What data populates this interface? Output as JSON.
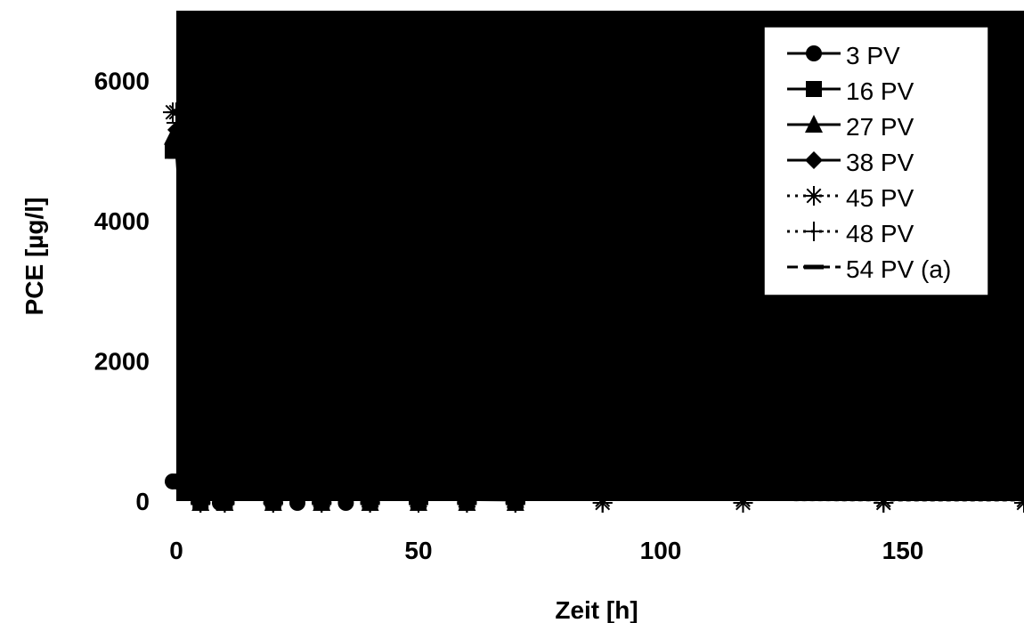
{
  "chart_data": {
    "type": "line",
    "xlabel": "Zeit [h]",
    "ylabel": "PCE [µg/l]",
    "xlim": [
      0,
      175
    ],
    "ylim": [
      0,
      7000
    ],
    "xticks": [
      0,
      50,
      100,
      150
    ],
    "yticks": [
      0,
      2000,
      4000,
      6000
    ],
    "xtick_labels": [
      "0",
      "50",
      "100",
      "150"
    ],
    "ytick_labels": [
      "0",
      "2000",
      "4000",
      "6000"
    ],
    "grid": false,
    "legend_position": "top-right",
    "plot_background": "#000000",
    "series": [
      {
        "name": "3 PV",
        "marker": "circle",
        "line": "solid",
        "x": [
          0,
          5,
          9,
          20,
          25,
          30,
          35,
          50,
          60,
          70
        ],
        "y": [
          280,
          50,
          40,
          30,
          30,
          25,
          25,
          20,
          20,
          15
        ]
      },
      {
        "name": "16 PV",
        "marker": "square",
        "line": "solid",
        "x": [
          0,
          5,
          10,
          20,
          30,
          40,
          50,
          60,
          70
        ],
        "y": [
          5000,
          60,
          50,
          40,
          40,
          30,
          30,
          25,
          20
        ]
      },
      {
        "name": "27 PV",
        "marker": "triangle",
        "line": "solid",
        "x": [
          0,
          5,
          10,
          20,
          30,
          40,
          50,
          60,
          70
        ],
        "y": [
          5200,
          70,
          50,
          40,
          35,
          30,
          30,
          25,
          20
        ]
      },
      {
        "name": "38 PV",
        "marker": "diamond",
        "line": "solid",
        "x": [
          0,
          5,
          10,
          20,
          30,
          40,
          50,
          60,
          70
        ],
        "y": [
          5300,
          60,
          50,
          40,
          35,
          30,
          30,
          25,
          20
        ]
      },
      {
        "name": "45 PV",
        "marker": "asterisk",
        "line": "dotted",
        "x": [
          0,
          5,
          10,
          20,
          30,
          40,
          50,
          60,
          70,
          88,
          117,
          146,
          175
        ],
        "y": [
          5550,
          80,
          60,
          50,
          40,
          35,
          30,
          25,
          25,
          20,
          20,
          15,
          15
        ]
      },
      {
        "name": "48 PV",
        "marker": "plus",
        "line": "dotted",
        "x": [
          0,
          5,
          10,
          20,
          30,
          40,
          50,
          60,
          70,
          88,
          117,
          146,
          175
        ],
        "y": [
          5400,
          70,
          60,
          50,
          40,
          35,
          30,
          25,
          25,
          20,
          20,
          15,
          15
        ]
      },
      {
        "name": "54 PV (a)",
        "marker": "dash",
        "line": "dashed",
        "x": [
          0,
          5,
          10,
          20,
          30,
          40,
          50,
          60,
          70
        ],
        "y": [
          5100,
          70,
          60,
          50,
          40,
          35,
          30,
          25,
          20
        ]
      }
    ]
  }
}
